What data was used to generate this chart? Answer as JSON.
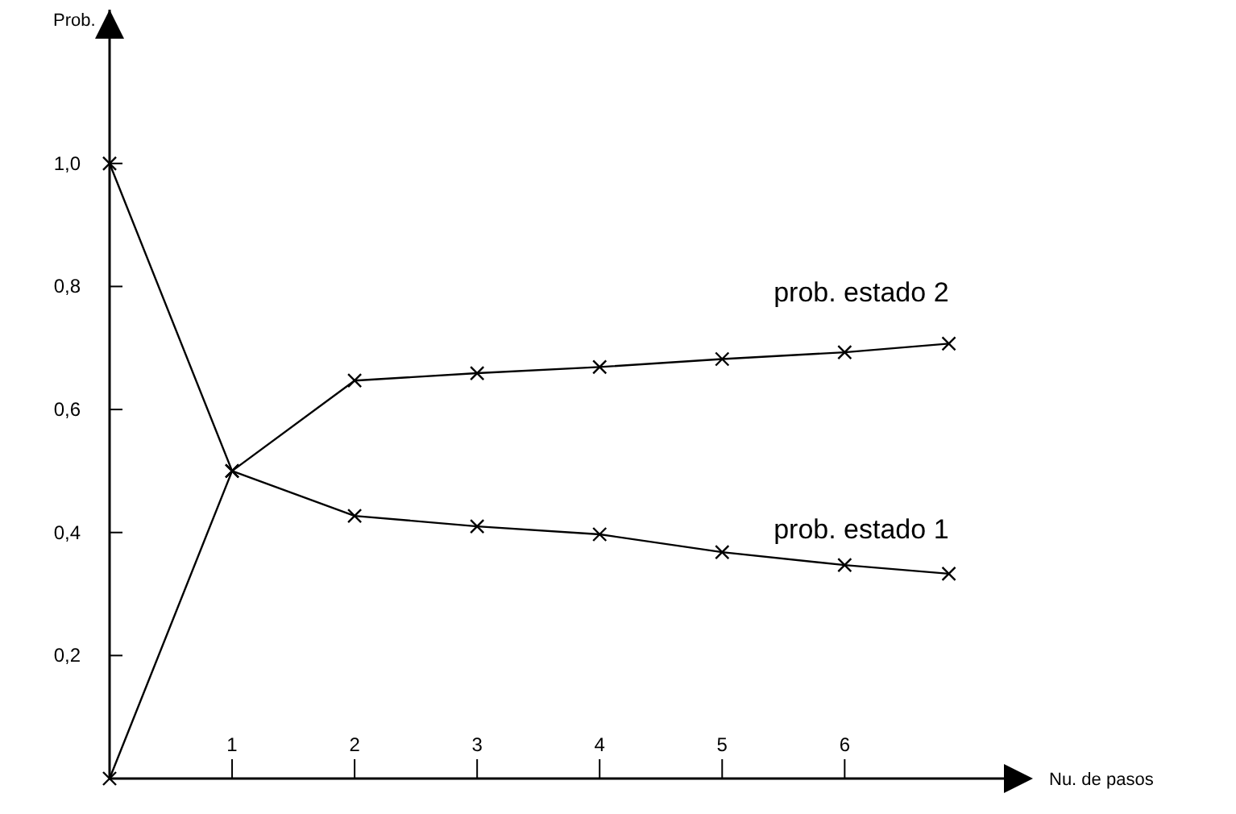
{
  "chart_data": {
    "type": "line",
    "xlabel": "Nu. de pasos",
    "ylabel": "Prob.",
    "xlim": [
      0,
      7.3
    ],
    "ylim": [
      0,
      1.25
    ],
    "xticks": [
      1,
      2,
      3,
      4,
      5,
      6
    ],
    "yticks": [
      {
        "value": 0.2,
        "label": "0,2"
      },
      {
        "value": 0.4,
        "label": "0,4"
      },
      {
        "value": 0.6,
        "label": "0,6"
      },
      {
        "value": 0.8,
        "label": "0,8"
      },
      {
        "value": 1,
        "label": "1,0"
      }
    ],
    "x": [
      0,
      1,
      2,
      3,
      4,
      5,
      6,
      6.85
    ],
    "series": [
      {
        "name": "prob. estado 1",
        "color": "#000000",
        "values": [
          1,
          0.5,
          0.427,
          0.41,
          0.397,
          0.368,
          0.347,
          0.333
        ]
      },
      {
        "name": "prob. estado 2",
        "color": "#000000",
        "values": [
          0,
          0.5,
          0.647,
          0.659,
          0.669,
          0.682,
          0.693,
          0.707
        ]
      }
    ],
    "marker": "cross",
    "line_style": "solid",
    "grid": false
  }
}
